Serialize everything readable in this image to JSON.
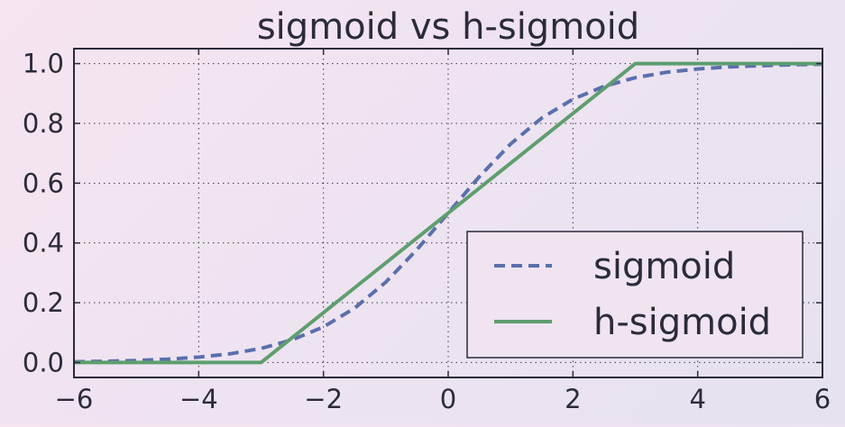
{
  "chart_data": {
    "type": "line",
    "title": "sigmoid vs h-sigmoid",
    "xlabel": "",
    "ylabel": "",
    "xlim": [
      -6,
      6
    ],
    "ylim": [
      -0.05,
      1.05
    ],
    "xticks": [
      -6,
      -4,
      -2,
      0,
      2,
      4,
      6
    ],
    "xtick_labels": [
      "−6",
      "−4",
      "−2",
      "0",
      "2",
      "4",
      "6"
    ],
    "yticks": [
      0.0,
      0.2,
      0.4,
      0.6,
      0.8,
      1.0
    ],
    "ytick_labels": [
      "0.0",
      "0.2",
      "0.4",
      "0.6",
      "0.8",
      "1.0"
    ],
    "grid": true,
    "legend_position": "lower-right",
    "series": [
      {
        "name": "sigmoid",
        "style": "dashed",
        "color": "#5a6fae",
        "x": [
          -6,
          -5.5,
          -5,
          -4.5,
          -4,
          -3.5,
          -3,
          -2.5,
          -2,
          -1.5,
          -1,
          -0.5,
          0,
          0.5,
          1,
          1.5,
          2,
          2.5,
          3,
          3.5,
          4,
          4.5,
          5,
          5.5,
          6
        ],
        "y": [
          0.0025,
          0.0041,
          0.0067,
          0.011,
          0.018,
          0.029,
          0.047,
          0.076,
          0.119,
          0.182,
          0.269,
          0.378,
          0.5,
          0.622,
          0.731,
          0.818,
          0.881,
          0.924,
          0.953,
          0.971,
          0.982,
          0.989,
          0.993,
          0.996,
          0.998
        ]
      },
      {
        "name": "h-sigmoid",
        "style": "solid",
        "color": "#5e9e6e",
        "x": [
          -6,
          -3,
          3,
          6
        ],
        "y": [
          0.0,
          0.0,
          1.0,
          1.0
        ]
      }
    ]
  },
  "colors": {
    "axis": "#2b2b3a",
    "grid": "#3a3a4a",
    "legend_fill": "#efe4f0"
  }
}
